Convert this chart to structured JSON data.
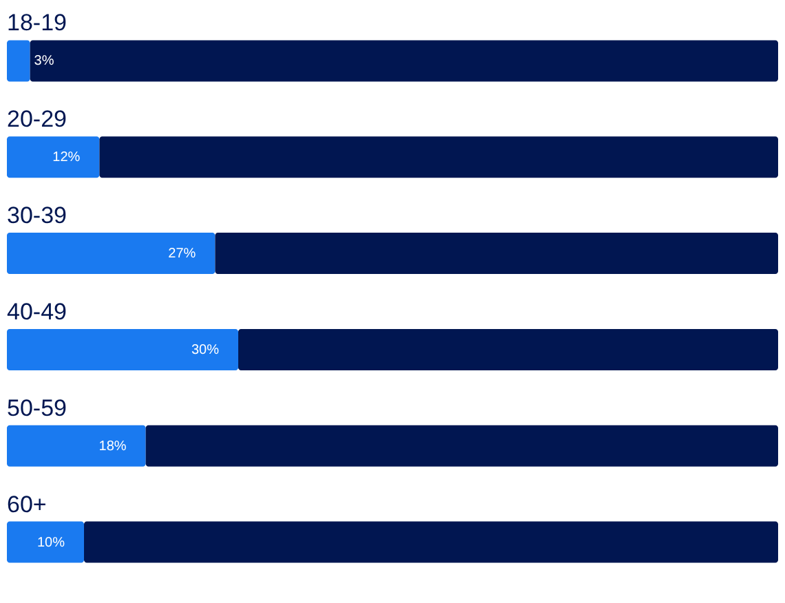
{
  "chart_data": {
    "type": "bar",
    "orientation": "horizontal",
    "stacked": true,
    "categories": [
      "18-19",
      "20-29",
      "30-39",
      "40-49",
      "50-59",
      "60+"
    ],
    "series": [
      {
        "color": "#1a7af0",
        "values": [
          3,
          12,
          27,
          30,
          18,
          10
        ],
        "value_labels": [
          "3%",
          "12%",
          "27%",
          "30%",
          "18%",
          "10%"
        ]
      },
      {
        "color": "#011651",
        "values": [
          97,
          88,
          73,
          70,
          82,
          90
        ]
      }
    ],
    "xlim": [
      0,
      100
    ],
    "tick_labels": false,
    "grid": false
  }
}
